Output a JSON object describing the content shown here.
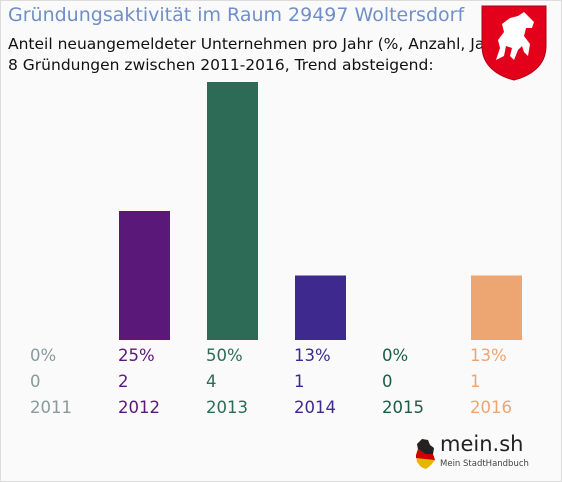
{
  "header": {
    "title": "Gründungsaktivität im Raum 29497 Woltersdorf",
    "subtitle_line1": "Anteil neuangemeldeter Unternehmen pro Jahr (%, Anzahl, Jahr)",
    "subtitle_line2": "8 Gründungen zwischen 2011-2016, Trend absteigend:"
  },
  "crest": {
    "icon": "white-horse-crest-icon",
    "color": "#e2001a"
  },
  "brand": {
    "name": "mein.sh",
    "tagline": "Mein StadtHandbuch"
  },
  "chart_data": {
    "type": "bar",
    "categories": [
      "2011",
      "2012",
      "2013",
      "2014",
      "2015",
      "2016"
    ],
    "values": [
      0,
      2,
      4,
      1,
      0,
      1
    ],
    "percent_labels": [
      "0%",
      "25%",
      "50%",
      "13%",
      "0%",
      "13%"
    ],
    "count_labels": [
      "0",
      "2",
      "4",
      "1",
      "0",
      "1"
    ],
    "colors": [
      "#8a9a9a",
      "#5a1878",
      "#2e6b57",
      "#3e2a8f",
      "#1d5b47",
      "#eda572"
    ],
    "ylim": [
      0,
      4
    ],
    "grid": false,
    "legend": "none"
  }
}
